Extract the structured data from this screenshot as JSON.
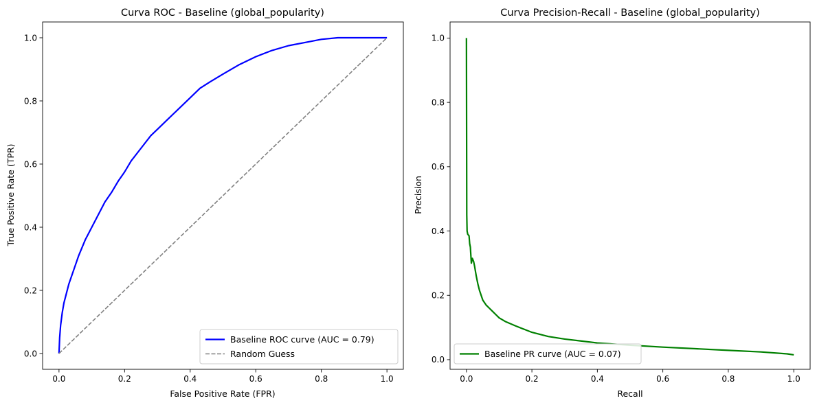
{
  "chart_data": [
    {
      "type": "line",
      "title": "Curva ROC - Baseline (global_popularity)",
      "xlabel": "False Positive Rate (FPR)",
      "ylabel": "True Positive Rate (TPR)",
      "xlim": [
        -0.05,
        1.05
      ],
      "ylim": [
        -0.05,
        1.05
      ],
      "xticks": [
        0.0,
        0.2,
        0.4,
        0.6,
        0.8,
        1.0
      ],
      "xtick_labels": [
        "0.0",
        "0.2",
        "0.4",
        "0.6",
        "0.8",
        "1.0"
      ],
      "yticks": [
        0.0,
        0.2,
        0.4,
        0.6,
        0.8,
        1.0
      ],
      "ytick_labels": [
        "0.0",
        "0.2",
        "0.4",
        "0.6",
        "0.8",
        "1.0"
      ],
      "grid": false,
      "legend_position": "lower right",
      "series": [
        {
          "name": "Baseline ROC curve (AUC = 0.79)",
          "color": "#0000ff",
          "style": "solid",
          "x": [
            0.0,
            0.002,
            0.005,
            0.01,
            0.015,
            0.02,
            0.03,
            0.04,
            0.05,
            0.06,
            0.07,
            0.08,
            0.09,
            0.1,
            0.12,
            0.14,
            0.16,
            0.18,
            0.2,
            0.22,
            0.25,
            0.28,
            0.3,
            0.33,
            0.36,
            0.4,
            0.43,
            0.46,
            0.5,
            0.55,
            0.6,
            0.65,
            0.7,
            0.75,
            0.8,
            0.85,
            0.9,
            0.95,
            1.0
          ],
          "y": [
            0.0,
            0.05,
            0.09,
            0.13,
            0.16,
            0.18,
            0.22,
            0.25,
            0.28,
            0.31,
            0.335,
            0.36,
            0.38,
            0.4,
            0.44,
            0.48,
            0.51,
            0.545,
            0.575,
            0.61,
            0.65,
            0.69,
            0.71,
            0.74,
            0.77,
            0.81,
            0.84,
            0.86,
            0.885,
            0.915,
            0.94,
            0.96,
            0.975,
            0.985,
            0.995,
            1.0,
            1.0,
            1.0,
            1.0
          ]
        },
        {
          "name": "Random Guess",
          "color": "#808080",
          "style": "dashed",
          "x": [
            0.0,
            1.0
          ],
          "y": [
            0.0,
            1.0
          ]
        }
      ]
    },
    {
      "type": "line",
      "title": "Curva Precision-Recall - Baseline (global_popularity)",
      "xlabel": "Recall",
      "ylabel": "Precision",
      "xlim": [
        -0.05,
        1.05
      ],
      "ylim": [
        -0.03,
        1.05
      ],
      "xticks": [
        0.0,
        0.2,
        0.4,
        0.6,
        0.8,
        1.0
      ],
      "xtick_labels": [
        "0.0",
        "0.2",
        "0.4",
        "0.6",
        "0.8",
        "1.0"
      ],
      "yticks": [
        0.0,
        0.2,
        0.4,
        0.6,
        0.8,
        1.0
      ],
      "ytick_labels": [
        "0.0",
        "0.2",
        "0.4",
        "0.6",
        "0.8",
        "1.0"
      ],
      "grid": false,
      "legend_position": "lower left",
      "series": [
        {
          "name": "Baseline PR curve (AUC = 0.07)",
          "color": "#008000",
          "style": "solid",
          "x": [
            0.0,
            0.001,
            0.002,
            0.004,
            0.008,
            0.01,
            0.012,
            0.015,
            0.018,
            0.02,
            0.022,
            0.025,
            0.03,
            0.035,
            0.04,
            0.05,
            0.06,
            0.07,
            0.08,
            0.09,
            0.1,
            0.12,
            0.15,
            0.18,
            0.2,
            0.25,
            0.3,
            0.35,
            0.4,
            0.5,
            0.6,
            0.7,
            0.8,
            0.9,
            0.98,
            1.0
          ],
          "y": [
            1.0,
            0.45,
            0.4,
            0.39,
            0.385,
            0.36,
            0.35,
            0.3,
            0.315,
            0.31,
            0.305,
            0.29,
            0.26,
            0.235,
            0.215,
            0.185,
            0.17,
            0.16,
            0.15,
            0.14,
            0.13,
            0.118,
            0.105,
            0.093,
            0.085,
            0.072,
            0.064,
            0.058,
            0.052,
            0.045,
            0.039,
            0.034,
            0.029,
            0.024,
            0.018,
            0.015
          ]
        }
      ]
    }
  ]
}
